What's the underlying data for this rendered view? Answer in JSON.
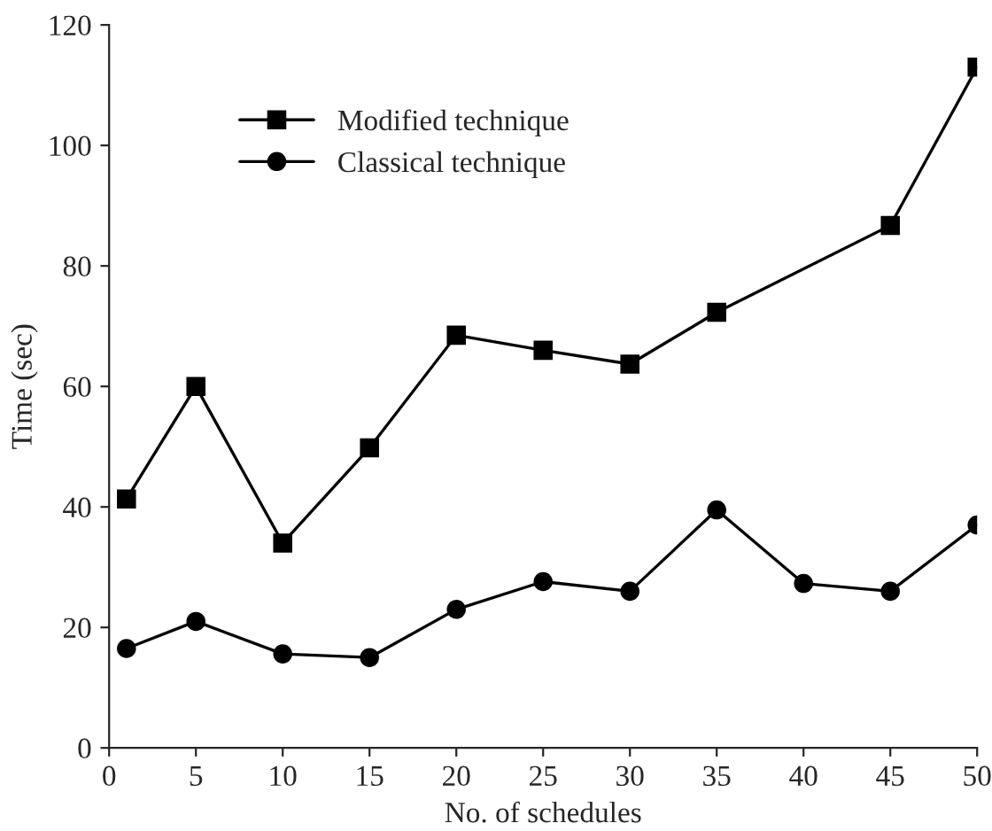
{
  "chart_data": {
    "type": "line",
    "xlabel": "No. of schedules",
    "ylabel": "Time (sec)",
    "xlim": [
      0,
      50
    ],
    "xticks": [
      0,
      5,
      10,
      15,
      20,
      25,
      30,
      35,
      40,
      45,
      50
    ],
    "ylim": [
      0,
      120
    ],
    "yticks": [
      0,
      20,
      40,
      60,
      80,
      100,
      120
    ],
    "grid": false,
    "legend": "top left",
    "line_style": "solid",
    "series": [
      {
        "name": "Modified technique",
        "color": "#000000",
        "marker": "square",
        "x": [
          1,
          5,
          10,
          15,
          20,
          25,
          30,
          35,
          45,
          50
        ],
        "values": [
          41.3,
          60,
          34,
          49.8,
          68.5,
          66,
          63.7,
          72.3,
          86.7,
          113
        ]
      },
      {
        "name": "Classical technique",
        "color": "#000000",
        "marker": "circle",
        "x": [
          1,
          5,
          10,
          15,
          20,
          25,
          30,
          35,
          40,
          45,
          50
        ],
        "values": [
          16.5,
          21,
          15.6,
          15,
          23,
          27.6,
          26,
          39.5,
          27.3,
          26,
          37
        ]
      }
    ]
  }
}
